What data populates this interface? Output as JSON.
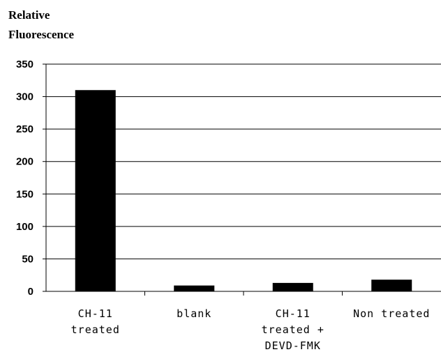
{
  "chart_data": {
    "type": "bar",
    "ylabel_lines": [
      "Relative",
      "Fluorescence"
    ],
    "xlabel": "",
    "ylim": [
      0,
      350
    ],
    "yticks": [
      0,
      50,
      100,
      150,
      200,
      250,
      300,
      350
    ],
    "grid": true,
    "categories": [
      {
        "lines": [
          "CH-11",
          "treated"
        ]
      },
      {
        "lines": [
          "blank"
        ]
      },
      {
        "lines": [
          "CH-11",
          "treated +",
          "DEVD-FMK"
        ]
      },
      {
        "lines": [
          "Non treated"
        ]
      }
    ],
    "values": [
      310,
      9,
      13,
      18
    ],
    "bar_color": "#000000"
  }
}
